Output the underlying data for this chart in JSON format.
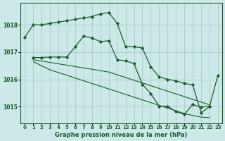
{
  "title": "Graphe pression niveau de la mer (hPa)",
  "bg_color": "#cce8e8",
  "grid_color": "#aacccc",
  "line_color": "#1a5c2a",
  "ylim": [
    1014.4,
    1018.8
  ],
  "yticks": [
    1015,
    1016,
    1017,
    1018
  ],
  "xticks": [
    0,
    1,
    2,
    3,
    4,
    5,
    6,
    7,
    8,
    9,
    10,
    11,
    12,
    13,
    14,
    15,
    16,
    17,
    18,
    19,
    20,
    21,
    22,
    23
  ],
  "line1_y": [
    1017.55,
    1018.0,
    1018.0,
    1018.05,
    1018.1,
    1018.15,
    1018.2,
    1018.25,
    1018.3,
    1018.4,
    1018.45,
    1018.05,
    1017.2,
    1017.2,
    1017.15,
    1016.45,
    1016.1,
    1016.0,
    1015.95,
    1015.85,
    1015.8,
    1014.78,
    1015.0,
    1016.15
  ],
  "line2_y": [
    null,
    1016.8,
    1016.8,
    1016.82,
    1016.82,
    1016.82,
    1017.2,
    1017.58,
    1017.52,
    1017.38,
    1017.42,
    1016.72,
    1016.68,
    1016.58,
    1015.82,
    1015.48,
    1015.02,
    1015.02,
    1014.82,
    1014.72,
    1015.08,
    1014.98,
    1015.02,
    null
  ],
  "line3_y": [
    null,
    1016.72,
    1016.67,
    1016.62,
    1016.57,
    1016.52,
    1016.47,
    1016.42,
    1016.37,
    1016.32,
    1016.27,
    1016.17,
    1016.07,
    1015.97,
    1015.87,
    1015.77,
    1015.67,
    1015.57,
    1015.47,
    1015.37,
    1015.27,
    1015.17,
    1015.07,
    null
  ],
  "line4_y": [
    null,
    1016.65,
    1016.5,
    1016.35,
    1016.25,
    1016.15,
    1016.05,
    1015.95,
    1015.85,
    1015.75,
    1015.65,
    1015.55,
    1015.45,
    1015.35,
    1015.25,
    1015.15,
    1015.05,
    1014.95,
    1014.85,
    1014.75,
    1014.68,
    1014.62,
    1014.6,
    null
  ]
}
